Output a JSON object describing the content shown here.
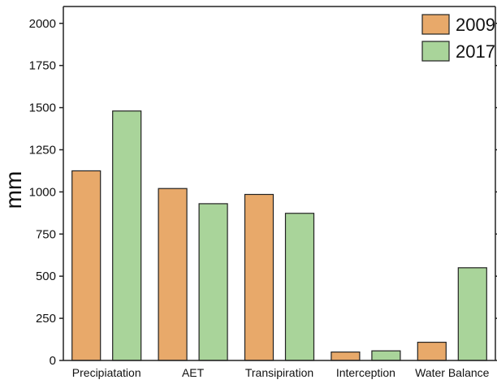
{
  "chart_data": {
    "type": "bar",
    "title": "",
    "xlabel": "",
    "ylabel": "mm",
    "ylim": [
      0,
      2100
    ],
    "yticks": [
      0,
      250,
      500,
      750,
      1000,
      1250,
      1500,
      1750,
      2000
    ],
    "categories": [
      "Precipiatation",
      "AET",
      "Transipiration",
      "Interception",
      "Water Balance"
    ],
    "series": [
      {
        "name": "2009",
        "color": "#E8A96A",
        "values": [
          1125,
          1020,
          985,
          50,
          108
        ]
      },
      {
        "name": "2017",
        "color": "#A9D49A",
        "values": [
          1480,
          930,
          873,
          57,
          550
        ]
      }
    ],
    "grid": false,
    "legend": "top-right"
  }
}
